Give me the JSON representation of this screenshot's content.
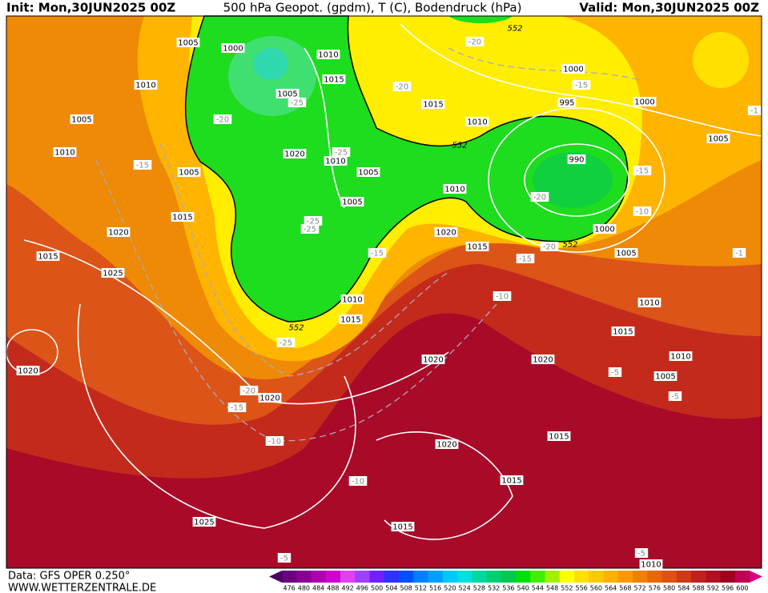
{
  "header": {
    "init": "Init: Mon,30JUN2025 00Z",
    "title": "500 hPa Geopot. (gpdm), T (C), Bodendruck (hPa)",
    "valid": "Valid: Mon,30JUN2025 00Z"
  },
  "footer": {
    "data": "Data: GFS OPER 0.250°",
    "site": "WWW.WETTERZENTRALE.DE"
  },
  "colorbar": {
    "labels": [
      "476",
      "480",
      "484",
      "488",
      "492",
      "496",
      "500",
      "504",
      "508",
      "512",
      "516",
      "520",
      "524",
      "528",
      "532",
      "536",
      "540",
      "544",
      "548",
      "552",
      "556",
      "560",
      "564",
      "568",
      "572",
      "576",
      "580",
      "584",
      "588",
      "592",
      "596",
      "600"
    ],
    "colors": [
      "#6a0080",
      "#8a0090",
      "#b000b0",
      "#d000d0",
      "#e040f0",
      "#a040ff",
      "#7020ff",
      "#3030ff",
      "#0050ff",
      "#0080ff",
      "#00a0ff",
      "#00c8ff",
      "#00e0e0",
      "#00d8a0",
      "#00d070",
      "#00c850",
      "#00e000",
      "#40f000",
      "#a0f000",
      "#ffff00",
      "#ffe000",
      "#ffc800",
      "#ffb000",
      "#ff9800",
      "#f08000",
      "#e86800",
      "#e05010",
      "#d03818",
      "#c02020",
      "#b01020",
      "#a00020",
      "#c00050"
    ],
    "low_color": "#4b0060",
    "high_color": "#e00080"
  },
  "map": {
    "labels": [
      "1005",
      "1000",
      "1010",
      "1010",
      "1005",
      "1005",
      "-25",
      "-20",
      "1015",
      "-20",
      "1015",
      "1010",
      "552",
      "995",
      "1000",
      "-15",
      "1000",
      "-20",
      "552",
      "1010",
      "-15",
      "1005",
      "1020",
      "1010",
      "-25",
      "1005",
      "990",
      "-20",
      "-15",
      "1010",
      "1005",
      "-1",
      "-10",
      "1015",
      "1020",
      "1005",
      "-25",
      "-25",
      "1020",
      "1015",
      "-15",
      "-15",
      "-20",
      "552",
      "1000",
      "1005",
      "-1",
      "1015",
      "1025",
      "1010",
      "-10",
      "1010",
      "1015",
      "552",
      "-25",
      "1015",
      "1020",
      "1020",
      "1020",
      "1010",
      "-5",
      "1005",
      "-5",
      "-20",
      "1020",
      "-15",
      "-10",
      "1020",
      "1015",
      "-10",
      "1015",
      "1025",
      "1015",
      "-5",
      "-5",
      "1010"
    ]
  }
}
